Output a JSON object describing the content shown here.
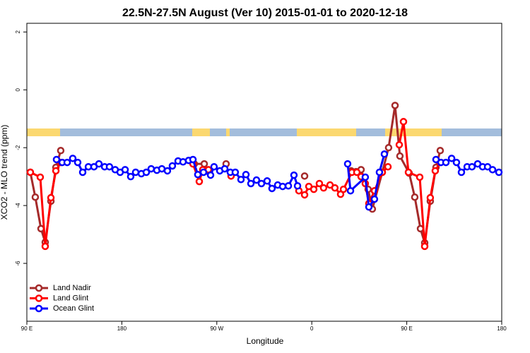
{
  "chart_data": {
    "type": "line",
    "title": "22.5N-27.5N August (Ver 10)   2015-01-01 to 2020-12-18",
    "x_label": "Longitude",
    "y_label": "XCO2 - MLO trend (ppm)",
    "xlim": [
      90,
      540
    ],
    "ylim": [
      -8,
      2.3
    ],
    "xticks": [
      {
        "value": 90,
        "label": "90 E"
      },
      {
        "value": 180,
        "label": "180"
      },
      {
        "value": 270,
        "label": "90 W"
      },
      {
        "value": 360,
        "label": "0"
      },
      {
        "value": 450,
        "label": "90 E"
      },
      {
        "value": 540,
        "label": "180"
      }
    ],
    "yticks": [
      -6,
      -4,
      -2,
      0,
      2
    ],
    "legend": "bottom-left",
    "series": [
      {
        "name": "Land Nadir",
        "color": "#a52a2a",
        "x": [
          93.3,
          98.0,
          103.4,
          107.4,
          112.8,
          117.5,
          122.1,
          null,
          248.7,
          258.1,
          null,
          278.8,
          null,
          353.2,
          null,
          397.3,
          402.0,
          406.7,
          413.4,
          417.4,
          426.8,
          432.8,
          438.9,
          443.5,
          452.3,
          457.6,
          463.0,
          467.0,
          472.3,
          477.7,
          481.7
        ],
        "values": [
          -2.85,
          -3.71,
          -4.8,
          -5.27,
          -3.85,
          -2.68,
          -2.1,
          null,
          -2.56,
          -2.56,
          null,
          -2.56,
          null,
          -2.98,
          null,
          -2.8,
          -2.83,
          -2.76,
          -3.44,
          -4.12,
          -2.85,
          -2.0,
          -0.54,
          -2.29,
          -2.88,
          -3.71,
          -4.8,
          -5.29,
          -3.85,
          -2.68,
          -2.1
        ]
      },
      {
        "name": "Land Glint",
        "color": "#ff0000",
        "x": [
          93.3,
          102.7,
          107.4,
          112.8,
          117.5,
          122.1,
          null,
          247.4,
          253.4,
          256.7,
          262.1,
          null,
          283.5,
          null,
          347.8,
          353.2,
          357.2,
          361.9,
          367.2,
          371.2,
          377.3,
          381.9,
          387.3,
          390.0,
          398.0,
          402.7,
          406.7,
          410.7,
          414.1,
          419.4,
          426.8,
          432.2,
          null,
          442.9,
          446.9,
          451.6,
          462.3,
          467.0,
          472.3,
          477.0,
          481.7
        ],
        "values": [
          -2.85,
          -3.02,
          -5.41,
          -3.73,
          -2.8,
          -2.51,
          null,
          -2.56,
          -3.17,
          -2.76,
          -2.76,
          null,
          -2.98,
          null,
          -3.49,
          -3.63,
          -3.34,
          -3.44,
          -3.24,
          -3.39,
          -3.29,
          -3.39,
          -3.61,
          -3.44,
          -2.85,
          -2.85,
          -3.0,
          -3.24,
          -3.93,
          -3.49,
          -2.85,
          -2.66,
          null,
          -1.9,
          -1.1,
          -2.85,
          -3.02,
          -5.41,
          -3.73,
          -2.8,
          -2.51
        ]
      },
      {
        "name": "Ocean Glint",
        "color": "#0000ff",
        "x": [
          118.1,
          123.5,
          128.2,
          133.5,
          138.2,
          142.9,
          148.3,
          153.6,
          158.3,
          163.7,
          168.3,
          173.7,
          178.4,
          183.1,
          188.4,
          193.1,
          198.5,
          203.2,
          207.8,
          213.2,
          217.9,
          223.2,
          227.9,
          233.3,
          238.0,
          243.3,
          247.4,
          252.0,
          257.4,
          264.1,
          267.4,
          272.8,
          277.5,
          282.8,
          287.5,
          292.9,
          297.6,
          302.3,
          307.6,
          312.3,
          317.7,
          322.3,
          327.7,
          332.4,
          337.8,
          343.1,
          346.5,
          null,
          394.0,
          396.7,
          410.7,
          414.1,
          419.4,
          424.1,
          428.8,
          null,
          477.7,
          482.4,
          487.1,
          492.5,
          497.1,
          501.8,
          507.2,
          511.8,
          517.2,
          521.9,
          526.6,
          531.3,
          537.3
        ],
        "values": [
          -2.41,
          -2.51,
          -2.51,
          -2.37,
          -2.51,
          -2.85,
          -2.66,
          -2.66,
          -2.56,
          -2.66,
          -2.66,
          -2.76,
          -2.85,
          -2.76,
          -3.0,
          -2.85,
          -2.9,
          -2.85,
          -2.73,
          -2.78,
          -2.73,
          -2.8,
          -2.63,
          -2.46,
          -2.49,
          -2.44,
          -2.41,
          -2.93,
          -2.85,
          -2.95,
          -2.66,
          -2.8,
          -2.73,
          -2.85,
          -2.85,
          -3.1,
          -2.93,
          -3.24,
          -3.12,
          -3.24,
          -3.15,
          -3.41,
          -3.29,
          -3.34,
          -3.32,
          -2.95,
          -3.32,
          null,
          -2.56,
          -3.49,
          -3.02,
          -4.05,
          -3.78,
          -2.85,
          -2.22,
          null,
          -2.41,
          -2.51,
          -2.51,
          -2.37,
          -2.51,
          -2.85,
          -2.66,
          -2.66,
          -2.56,
          -2.66,
          -2.66,
          -2.76,
          -2.85
        ]
      }
    ]
  }
}
